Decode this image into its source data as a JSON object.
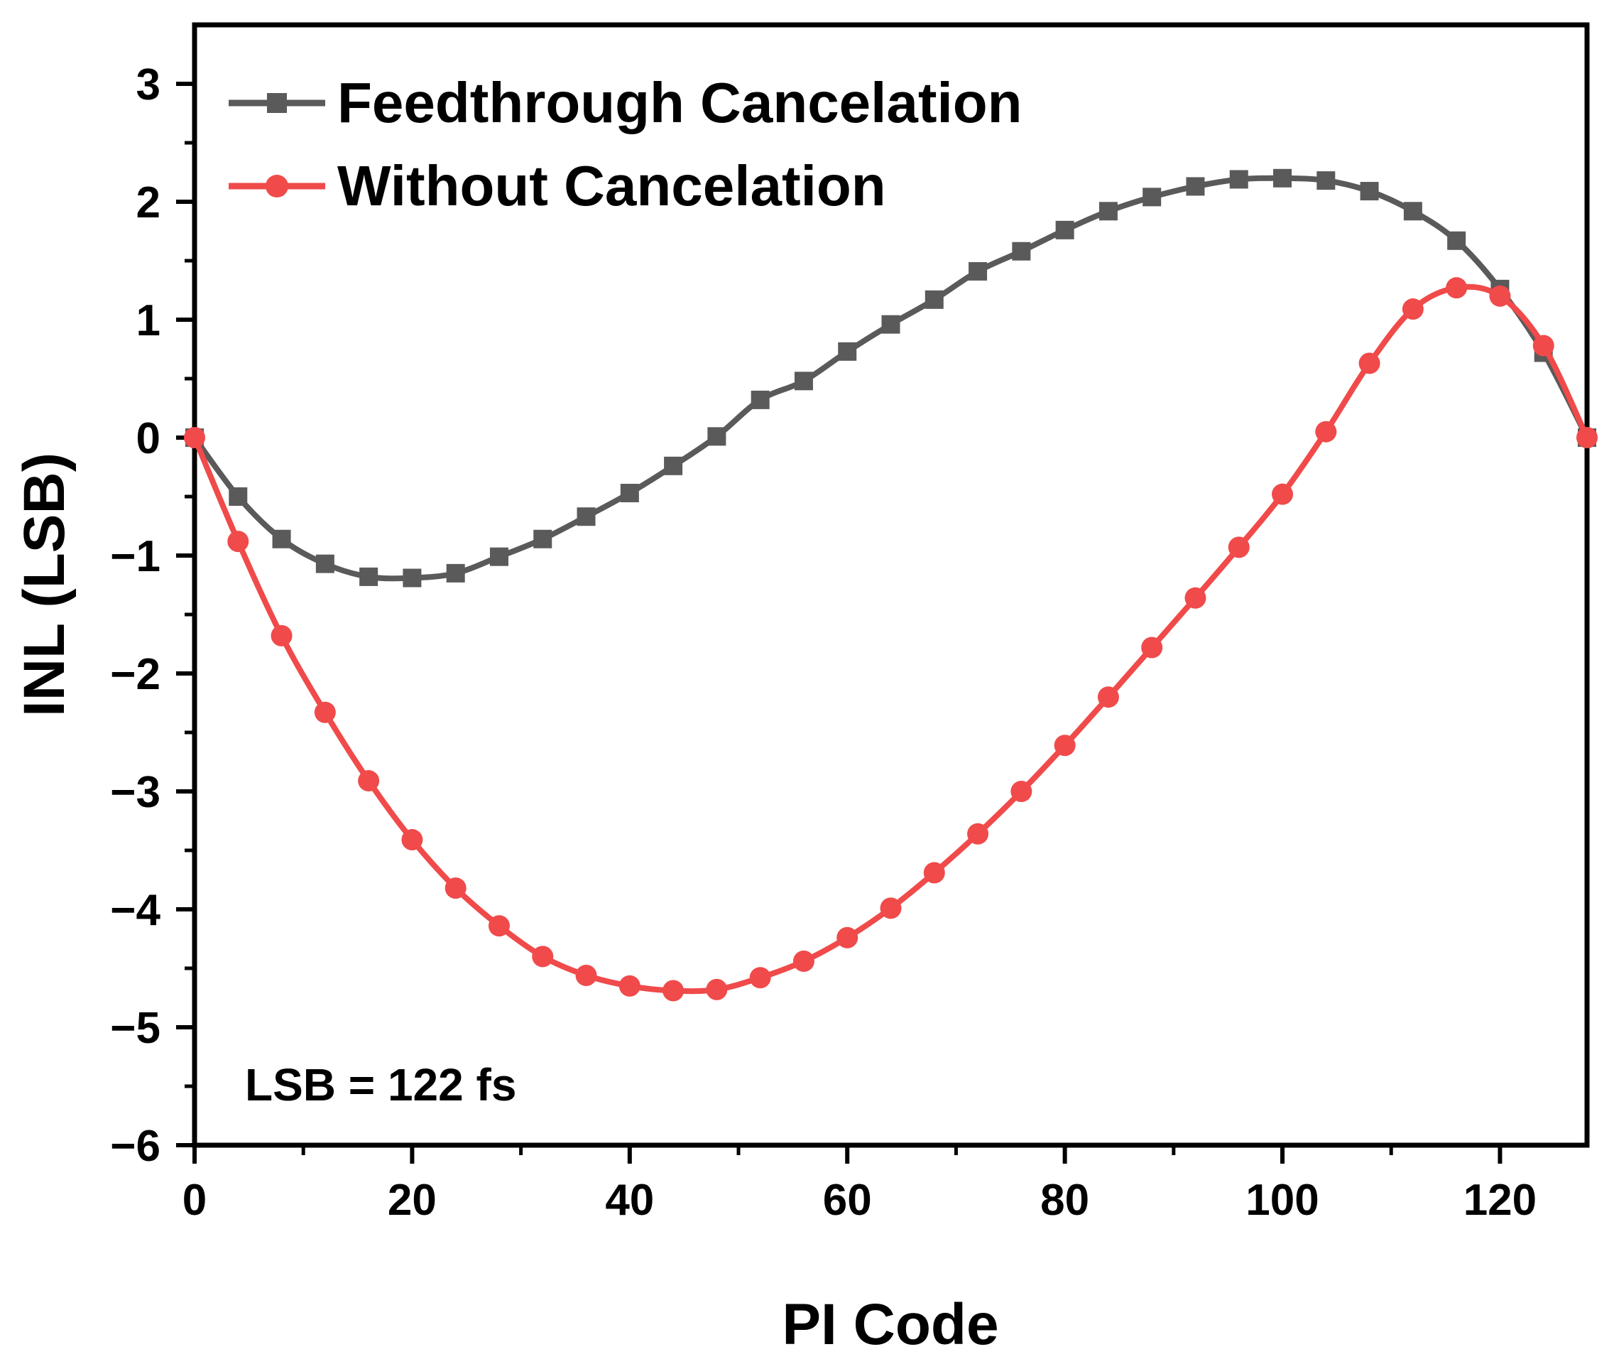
{
  "chart_data": {
    "type": "line",
    "title": "",
    "xlabel": "PI Code",
    "ylabel": "INL (LSB)",
    "xlim": [
      0,
      128
    ],
    "ylim": [
      -6,
      3.5
    ],
    "x_ticks": [
      0,
      20,
      40,
      60,
      80,
      100,
      120
    ],
    "y_ticks": [
      -6,
      -5,
      -4,
      -3,
      -2,
      -1,
      0,
      1,
      2,
      3
    ],
    "x_tick_labels": [
      "0",
      "20",
      "40",
      "60",
      "80",
      "100",
      "120"
    ],
    "y_tick_labels": [
      "−6",
      "−5",
      "−4",
      "−3",
      "−2",
      "−1",
      "0",
      "1",
      "2",
      "3"
    ],
    "grid": false,
    "legend_position": "top-left",
    "annotation": "LSB = 122 fs",
    "x": [
      0,
      4,
      8,
      12,
      16,
      20,
      24,
      28,
      32,
      36,
      40,
      44,
      48,
      52,
      56,
      60,
      64,
      68,
      72,
      76,
      80,
      84,
      88,
      92,
      96,
      100,
      104,
      108,
      112,
      116,
      120,
      124,
      128
    ],
    "series": [
      {
        "name": "Feedthrough Cancelation",
        "color": "#5a5a5a",
        "marker": "square",
        "values": [
          0,
          -0.5,
          -0.86,
          -1.07,
          -1.18,
          -1.19,
          -1.15,
          -1.01,
          -0.86,
          -0.67,
          -0.47,
          -0.24,
          0.01,
          0.32,
          0.48,
          0.73,
          0.96,
          1.17,
          1.41,
          1.58,
          1.76,
          1.92,
          2.04,
          2.13,
          2.19,
          2.2,
          2.18,
          2.09,
          1.92,
          1.67,
          1.26,
          0.72,
          0
        ]
      },
      {
        "name": "Without Cancelation",
        "color": "#f04a4a",
        "marker": "circle",
        "values": [
          0,
          -0.88,
          -1.68,
          -2.33,
          -2.91,
          -3.41,
          -3.82,
          -4.14,
          -4.4,
          -4.56,
          -4.65,
          -4.69,
          -4.68,
          -4.58,
          -4.44,
          -4.24,
          -3.99,
          -3.69,
          -3.36,
          -3.0,
          -2.61,
          -2.2,
          -1.78,
          -1.36,
          -0.93,
          -0.48,
          0.05,
          0.63,
          1.09,
          1.27,
          1.2,
          0.78,
          0
        ]
      }
    ]
  }
}
